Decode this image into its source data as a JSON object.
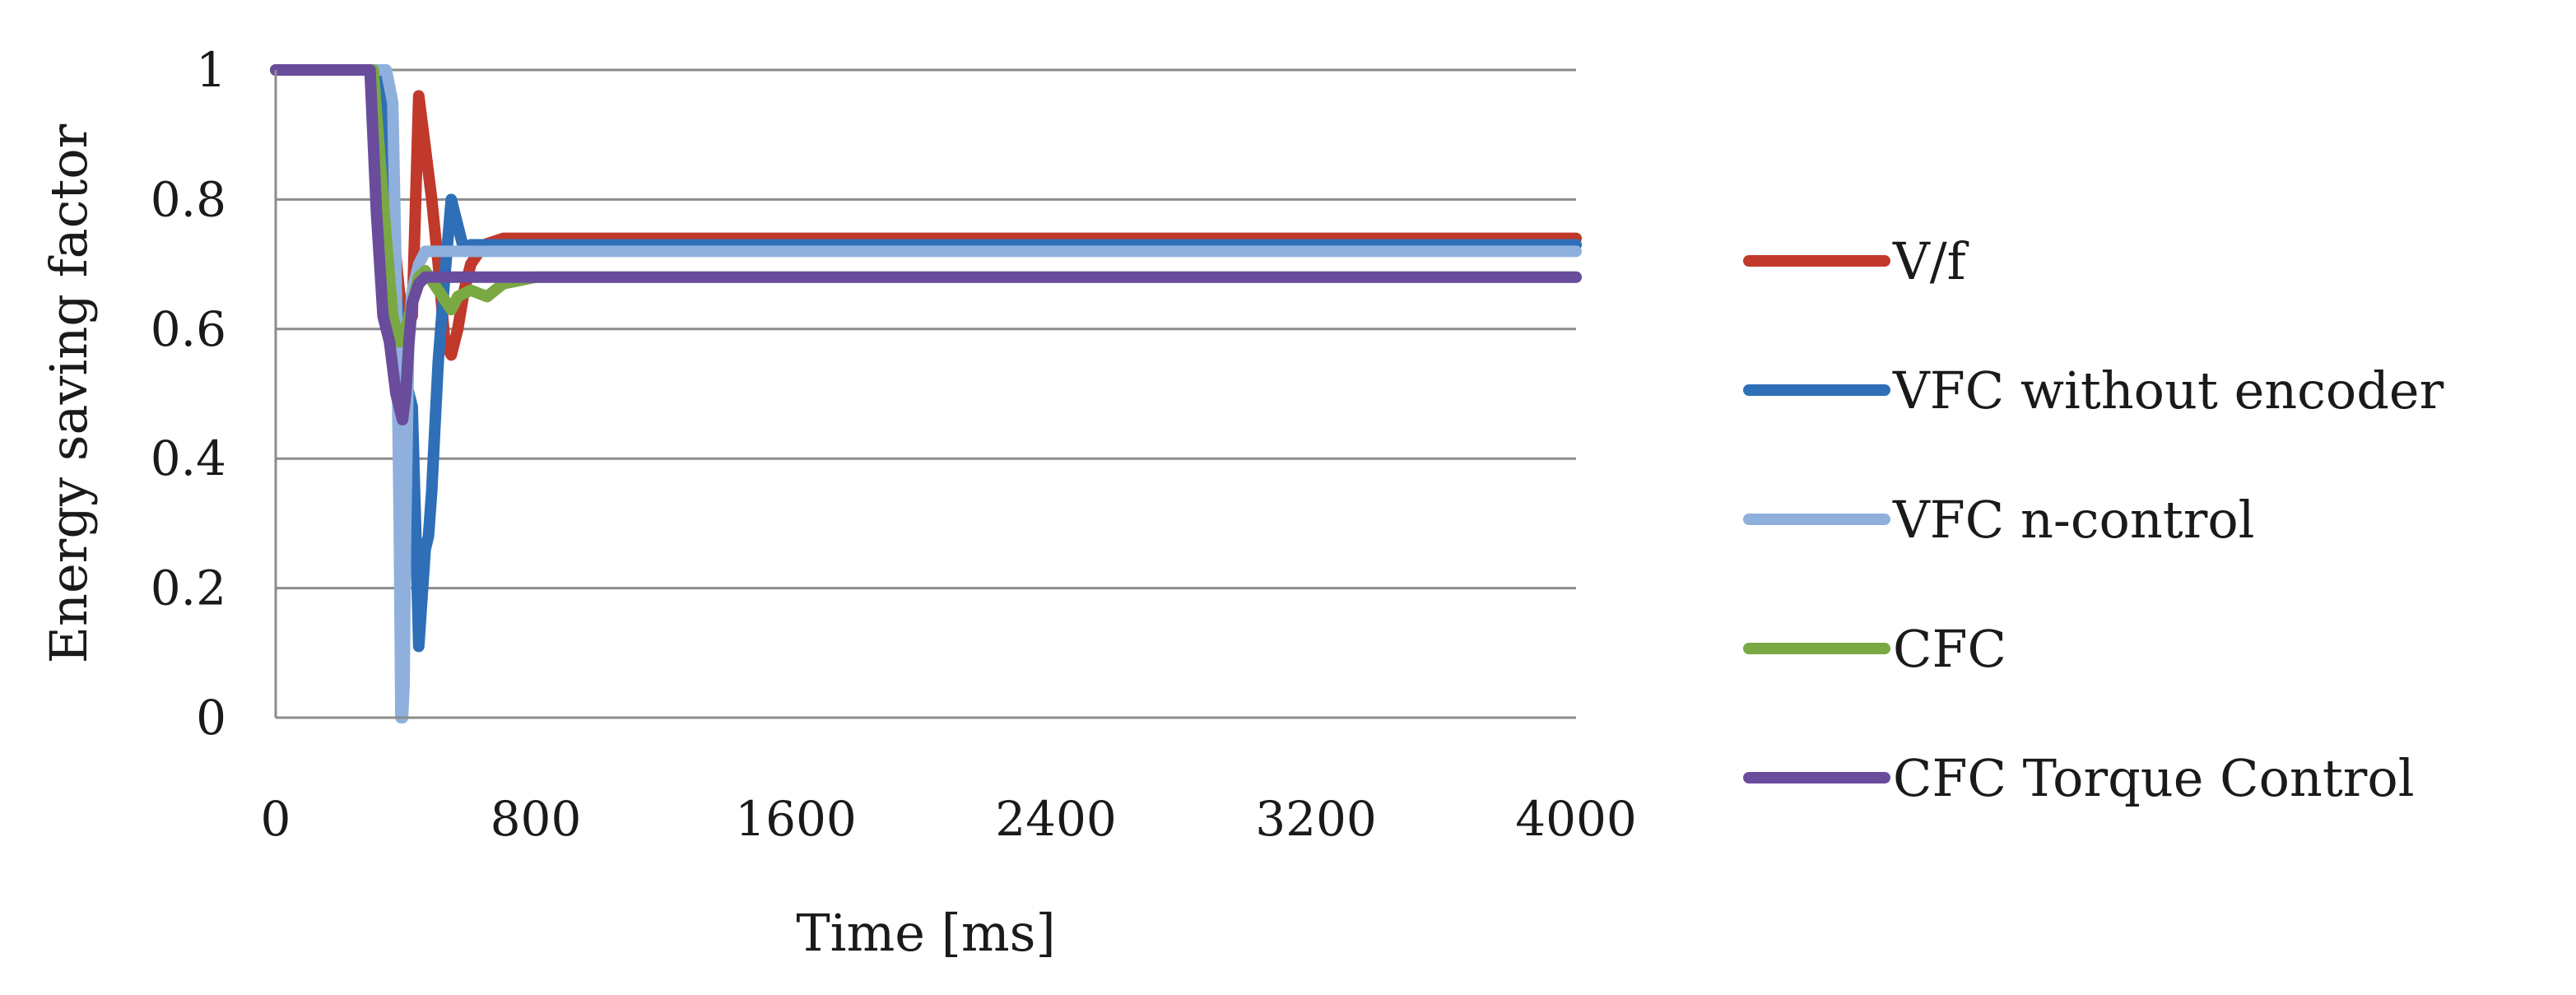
{
  "chart_data": {
    "type": "line",
    "title": "",
    "xlabel": "Time [ms]",
    "ylabel": "Energy saving factor",
    "xlim": [
      0,
      4000
    ],
    "ylim": [
      0,
      1
    ],
    "x_ticks": [
      "0",
      "800",
      "1600",
      "2400",
      "3200",
      "4000"
    ],
    "y_ticks": [
      "0",
      "0.2",
      "0.4",
      "0.6",
      "0.8",
      "1"
    ],
    "grid": "horizontal",
    "legend_position": "right",
    "series": [
      {
        "name": "V/f",
        "color": "#c0392b",
        "x": [
          0,
          300,
          320,
          340,
          360,
          380,
          400,
          420,
          440,
          460,
          480,
          500,
          520,
          540,
          560,
          580,
          600,
          640,
          700,
          800,
          1200,
          1600,
          2000,
          2400,
          2800,
          3200,
          3600,
          4000
        ],
        "y": [
          1.0,
          1.0,
          0.99,
          0.9,
          0.76,
          0.66,
          0.6,
          0.62,
          0.96,
          0.88,
          0.8,
          0.7,
          0.58,
          0.56,
          0.6,
          0.66,
          0.7,
          0.73,
          0.74,
          0.74,
          0.74,
          0.74,
          0.74,
          0.74,
          0.74,
          0.74,
          0.74,
          0.74
        ]
      },
      {
        "name": "VFC without encoder",
        "color": "#2e6fb7",
        "x": [
          0,
          300,
          320,
          340,
          360,
          380,
          400,
          420,
          430,
          440,
          460,
          470,
          480,
          490,
          500,
          520,
          540,
          560,
          580,
          600,
          640,
          700,
          800,
          1200,
          1600,
          2000,
          2400,
          2800,
          3200,
          3600,
          4000
        ],
        "y": [
          1.0,
          1.0,
          0.99,
          0.88,
          0.72,
          0.6,
          0.52,
          0.48,
          0.3,
          0.11,
          0.26,
          0.28,
          0.35,
          0.45,
          0.55,
          0.68,
          0.8,
          0.76,
          0.72,
          0.73,
          0.73,
          0.73,
          0.73,
          0.73,
          0.73,
          0.73,
          0.73,
          0.73,
          0.73,
          0.73,
          0.73
        ]
      },
      {
        "name": "VFC n-control",
        "color": "#8fb0dc",
        "x": [
          0,
          340,
          360,
          370,
          380,
          385,
          390,
          395,
          400,
          410,
          420,
          440,
          460,
          500,
          560,
          640,
          800,
          1200,
          1600,
          2000,
          2400,
          2800,
          3200,
          3600,
          4000
        ],
        "y": [
          1.0,
          1.0,
          0.95,
          0.7,
          0.3,
          0.0,
          0.0,
          0.05,
          0.3,
          0.6,
          0.66,
          0.7,
          0.72,
          0.72,
          0.72,
          0.72,
          0.72,
          0.72,
          0.72,
          0.72,
          0.72,
          0.72,
          0.72,
          0.72,
          0.72
        ]
      },
      {
        "name": "CFC",
        "color": "#7aa842",
        "x": [
          0,
          300,
          330,
          360,
          380,
          400,
          420,
          440,
          460,
          500,
          540,
          560,
          600,
          650,
          700,
          800,
          1200,
          1600,
          2000,
          2400,
          2800,
          3200,
          3600,
          4000
        ],
        "y": [
          1.0,
          1.0,
          0.8,
          0.62,
          0.58,
          0.6,
          0.64,
          0.68,
          0.69,
          0.66,
          0.63,
          0.65,
          0.66,
          0.65,
          0.67,
          0.68,
          0.68,
          0.68,
          0.68,
          0.68,
          0.68,
          0.68,
          0.68,
          0.68
        ]
      },
      {
        "name": "CFC Torque Control",
        "color": "#6a4c9c",
        "x": [
          0,
          290,
          310,
          330,
          350,
          370,
          390,
          400,
          410,
          420,
          440,
          460,
          500,
          560,
          640,
          800,
          1200,
          1600,
          2000,
          2400,
          2800,
          3200,
          3600,
          4000
        ],
        "y": [
          1.0,
          1.0,
          0.78,
          0.62,
          0.58,
          0.5,
          0.46,
          0.5,
          0.58,
          0.64,
          0.67,
          0.68,
          0.68,
          0.68,
          0.68,
          0.68,
          0.68,
          0.68,
          0.68,
          0.68,
          0.68,
          0.68,
          0.68,
          0.68
        ]
      }
    ]
  }
}
